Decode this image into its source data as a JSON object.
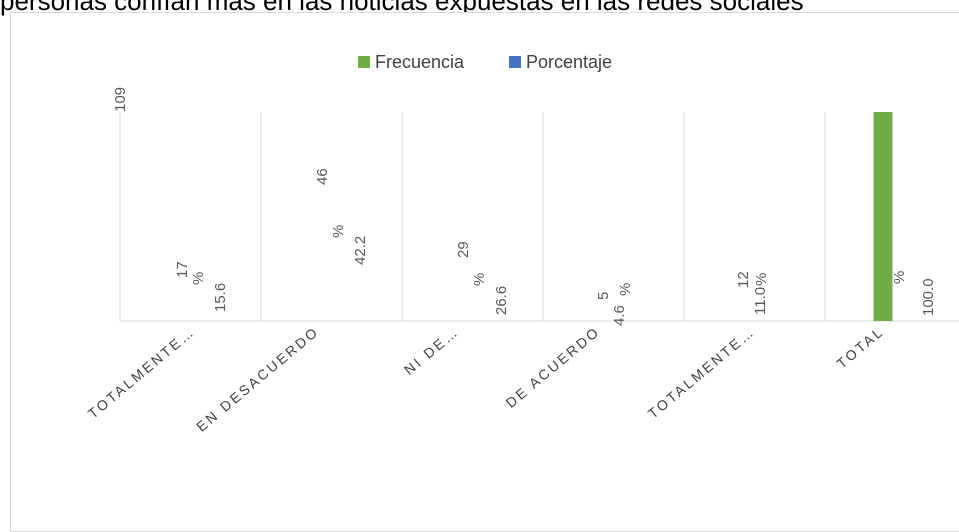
{
  "caption": "personas confían más en las noticias expuestas en las redes sociales",
  "colors": {
    "frecuencia": "#70ad47",
    "porcentaje": "#4472c4",
    "grid": "#d9d9d9",
    "text": "#595959"
  },
  "chart_data": {
    "type": "bar",
    "title": "",
    "categories": [
      "TOTALMENTE…",
      "EN DESACUERDO",
      "NI DE…",
      "DE ACUERDO",
      "TOTALMENTE…",
      "TOTAL"
    ],
    "series": [
      {
        "name": "Frecuencia",
        "values": [
          17,
          46,
          29,
          5,
          12,
          109
        ],
        "labels": [
          "17",
          "46",
          "29",
          "5",
          "12",
          "109"
        ]
      },
      {
        "name": "Porcentaje",
        "values": [
          15.6,
          42.2,
          26.6,
          4.6,
          11.0,
          100.0
        ],
        "labels": [
          "%\n15.6",
          "%\n42.2",
          "%\n26.6",
          "%\n4.6",
          "%\n11.0",
          "%\n100.0"
        ]
      }
    ],
    "legend_position": "top",
    "ylim": [
      0,
      109
    ],
    "grid": "vertical"
  }
}
